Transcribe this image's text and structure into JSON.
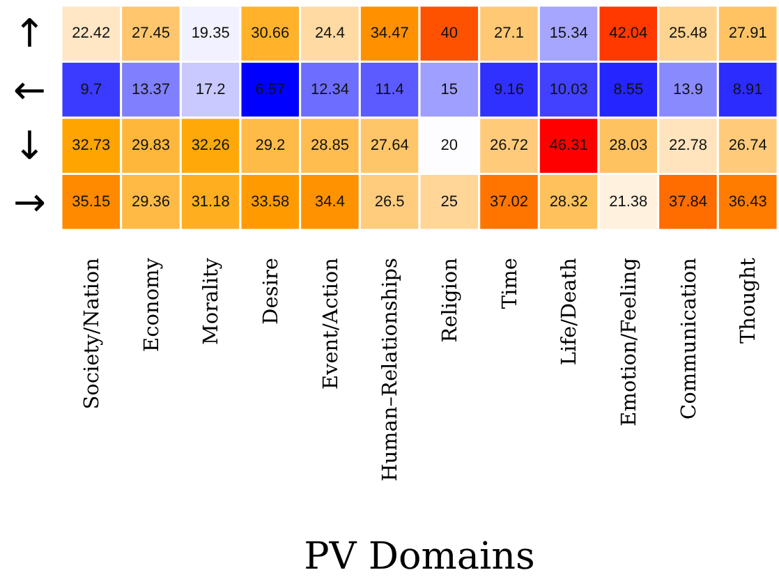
{
  "chart_data": {
    "type": "heatmap",
    "xlabel": "PV Domains",
    "categories": [
      "Society/Nation",
      "Economy",
      "Morality",
      "Desire",
      "Event/Action",
      "Human–Relationships",
      "Religion",
      "Time",
      "Life/Death",
      "Emotion/Feeling",
      "Communication",
      "Thought"
    ],
    "y_categories": [
      "↑",
      "←",
      "↓",
      "→"
    ],
    "cells": [
      [
        22.42,
        27.45,
        19.35,
        30.66,
        24.4,
        34.47,
        40,
        27.1,
        15.34,
        42.04,
        25.48,
        27.91
      ],
      [
        9.7,
        13.37,
        17.2,
        6.57,
        12.34,
        11.4,
        15,
        9.16,
        10.03,
        8.55,
        13.9,
        8.91
      ],
      [
        32.73,
        29.83,
        32.26,
        29.2,
        28.85,
        27.64,
        20,
        26.72,
        46.31,
        28.03,
        22.78,
        26.74
      ],
      [
        35.15,
        29.36,
        31.18,
        33.58,
        34.4,
        26.5,
        25,
        37.02,
        28.32,
        21.38,
        37.84,
        36.43
      ]
    ],
    "data_labels": true
  }
}
